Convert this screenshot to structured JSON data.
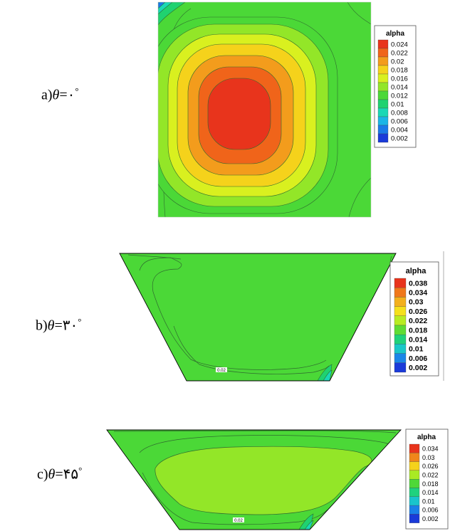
{
  "chart_data": [
    {
      "type": "heatmap",
      "panel_label": {
        "prefix": "a)",
        "symbol": "θ",
        "eq": "=",
        "value": "۰",
        "unit": "°"
      },
      "legend": {
        "title": "alpha",
        "levels": [
          "0.024",
          "0.022",
          "0.02",
          "0.018",
          "0.016",
          "0.014",
          "0.012",
          "0.01",
          "0.008",
          "0.006",
          "0.004",
          "0.002"
        ],
        "colors": [
          "#e8341c",
          "#f0641a",
          "#f39c1c",
          "#f5d21b",
          "#d9f01f",
          "#93e628",
          "#4bd837",
          "#1fd270",
          "#19d8b5",
          "#1ab5e6",
          "#1a79e8",
          "#1a3ad9"
        ]
      },
      "geometry": "square cavity",
      "contour_levels": [
        0.002,
        0.004,
        0.006,
        0.008,
        0.01,
        0.012,
        0.014,
        0.016,
        0.018,
        0.02,
        0.022,
        0.024
      ],
      "max_region": "center",
      "min_region": "top-left corner"
    },
    {
      "type": "heatmap",
      "panel_label": {
        "prefix": "b)",
        "symbol": "θ",
        "eq": "=",
        "value": "۳۰",
        "unit": "°"
      },
      "legend": {
        "title": "alpha",
        "levels": [
          "0.038",
          "0.034",
          "0.03",
          "0.026",
          "0.022",
          "0.018",
          "0.014",
          "0.01",
          "0.006",
          "0.002"
        ],
        "colors": [
          "#e8341c",
          "#f0781a",
          "#f3b01c",
          "#f5e01b",
          "#b8ec22",
          "#5fdc34",
          "#1fd27a",
          "#19c8c8",
          "#1a86e8",
          "#1a3ad9"
        ]
      },
      "geometry": "trapezoid cavity",
      "contour_label": "0.02"
    },
    {
      "type": "heatmap",
      "panel_label": {
        "prefix": "c)",
        "symbol": "θ",
        "eq": "=",
        "value": "۴۵",
        "unit": "°"
      },
      "legend": {
        "title": "alpha",
        "levels": [
          "0.034",
          "0.03",
          "0.026",
          "0.022",
          "0.018",
          "0.014",
          "0.01",
          "0.006",
          "0.002"
        ],
        "colors": [
          "#e8341c",
          "#f0861a",
          "#f5d21b",
          "#a9ea24",
          "#4fd838",
          "#1fd27e",
          "#19c4cc",
          "#1a80e8",
          "#1a3ad9"
        ]
      },
      "geometry": "trapezoid cavity",
      "contour_label": "0.02"
    }
  ]
}
